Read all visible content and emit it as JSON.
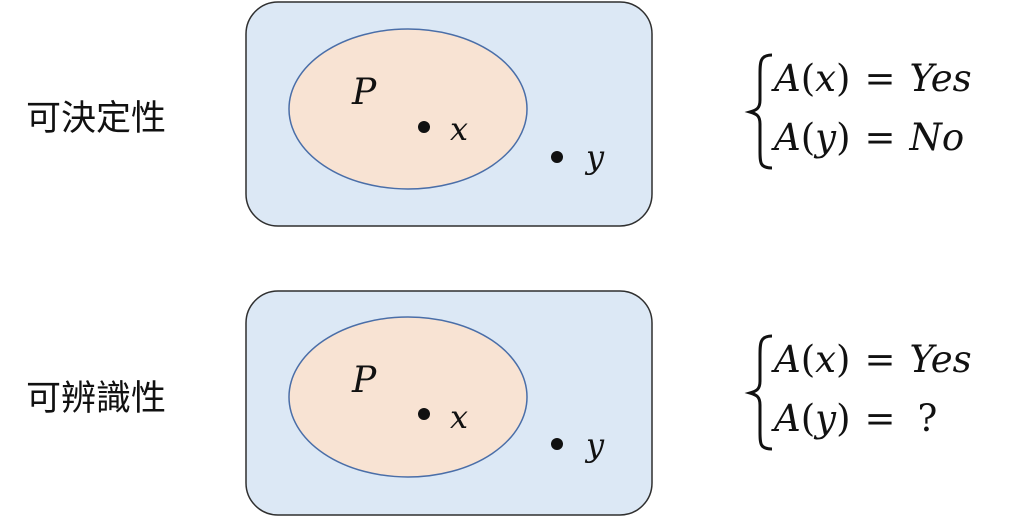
{
  "colors": {
    "outer_fill": "#dce8f5",
    "outer_stroke": "#2f2f2f",
    "set_fill": "#f8e3d3",
    "set_stroke": "#4a6ea8",
    "text": "#111111",
    "question": "#e0201c"
  },
  "panels": [
    {
      "label": "可決定性",
      "set_label": "P",
      "point_inside": "x",
      "point_outside": "y",
      "case_1": {
        "fn": "A",
        "open": "(",
        "arg": "x",
        "close": ")",
        "eq": "=",
        "result": "Yes"
      },
      "case_2": {
        "fn": "A",
        "open": "(",
        "arg": "y",
        "close": ")",
        "eq": "=",
        "result": "No"
      }
    },
    {
      "label": "可辨識性",
      "set_label": "P",
      "point_inside": "x",
      "point_outside": "y",
      "case_1": {
        "fn": "A",
        "open": "(",
        "arg": "x",
        "close": ")",
        "eq": "=",
        "result": "Yes"
      },
      "case_2": {
        "fn": "A",
        "open": "(",
        "arg": "y",
        "close": ")",
        "eq": "=",
        "result": "?"
      }
    }
  ]
}
